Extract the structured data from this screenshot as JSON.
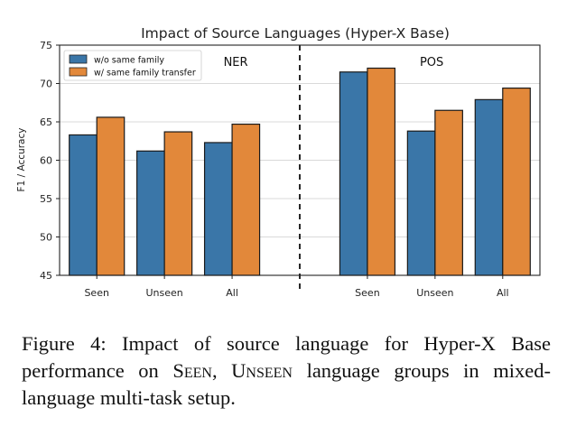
{
  "chart_data": {
    "type": "bar",
    "title": "Impact of Source Languages (Hyper-X Base)",
    "ylabel": "F1 / Accuracy",
    "ylim": [
      45,
      75
    ],
    "yticks": [
      45,
      50,
      55,
      60,
      65,
      70,
      75
    ],
    "grid": true,
    "legend_position": "top-left",
    "panels": [
      {
        "name": "NER",
        "categories": [
          "Seen",
          "Unseen",
          "All"
        ],
        "series": [
          {
            "name": "w/o same family",
            "color": "#3a76a8",
            "values": [
              63.3,
              61.2,
              62.3
            ]
          },
          {
            "name": "w/ same family transfer",
            "color": "#e2883a",
            "values": [
              65.6,
              63.7,
              64.7
            ]
          }
        ]
      },
      {
        "name": "POS",
        "categories": [
          "Seen",
          "Unseen",
          "All"
        ],
        "series": [
          {
            "name": "w/o same family",
            "color": "#3a76a8",
            "values": [
              71.5,
              63.8,
              67.9
            ]
          },
          {
            "name": "w/ same family transfer",
            "color": "#e2883a",
            "values": [
              72.0,
              66.5,
              69.4
            ]
          }
        ]
      }
    ]
  },
  "caption": {
    "prefix": "Figure 4: Impact of source language for Hyper-X Base performance on ",
    "seen": "Seen",
    "comma": ", ",
    "unseen": "Unseen",
    "suffix": " language groups in mixed-language multi-task setup."
  }
}
